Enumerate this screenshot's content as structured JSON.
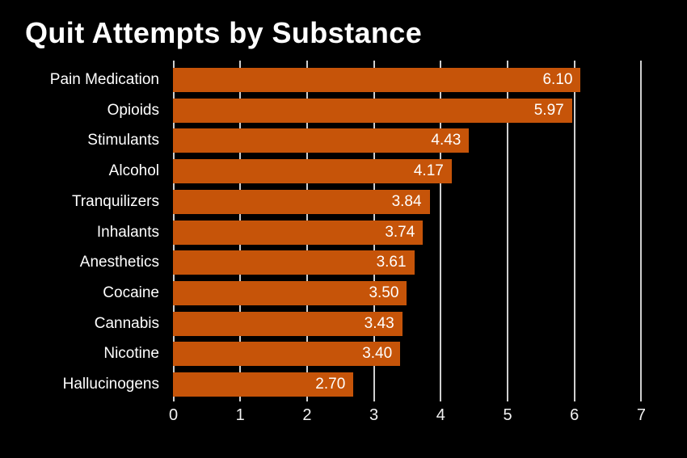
{
  "chart_data": {
    "type": "bar",
    "orientation": "horizontal",
    "title": "Quit Attempts by Substance",
    "categories": [
      "Pain Medication",
      "Opioids",
      "Stimulants",
      "Alcohol",
      "Tranquilizers",
      "Inhalants",
      "Anesthetics",
      "Cocaine",
      "Cannabis",
      "Nicotine",
      "Hallucinogens"
    ],
    "values": [
      6.1,
      5.97,
      4.43,
      4.17,
      3.84,
      3.74,
      3.61,
      3.5,
      3.43,
      3.4,
      2.7
    ],
    "value_labels": [
      "6.10",
      "5.97",
      "4.43",
      "4.17",
      "3.84",
      "3.74",
      "3.61",
      "3.50",
      "3.43",
      "3.40",
      "2.70"
    ],
    "xlabel": "",
    "ylabel": "",
    "xlim": [
      0,
      7
    ],
    "x_ticks": [
      "0",
      "1",
      "2",
      "3",
      "4",
      "5",
      "6",
      "7"
    ],
    "grid": "vertical-gridlines-behind-bars",
    "legend": "none",
    "value_label_position": "inside-end",
    "colors": {
      "background": "#000000",
      "bar": "#C65409",
      "gridline": "#CFCFCF",
      "title_text": "#FFFFFF",
      "label_text": "#FFFFFF",
      "tick_text": "#F2F2F2"
    }
  }
}
